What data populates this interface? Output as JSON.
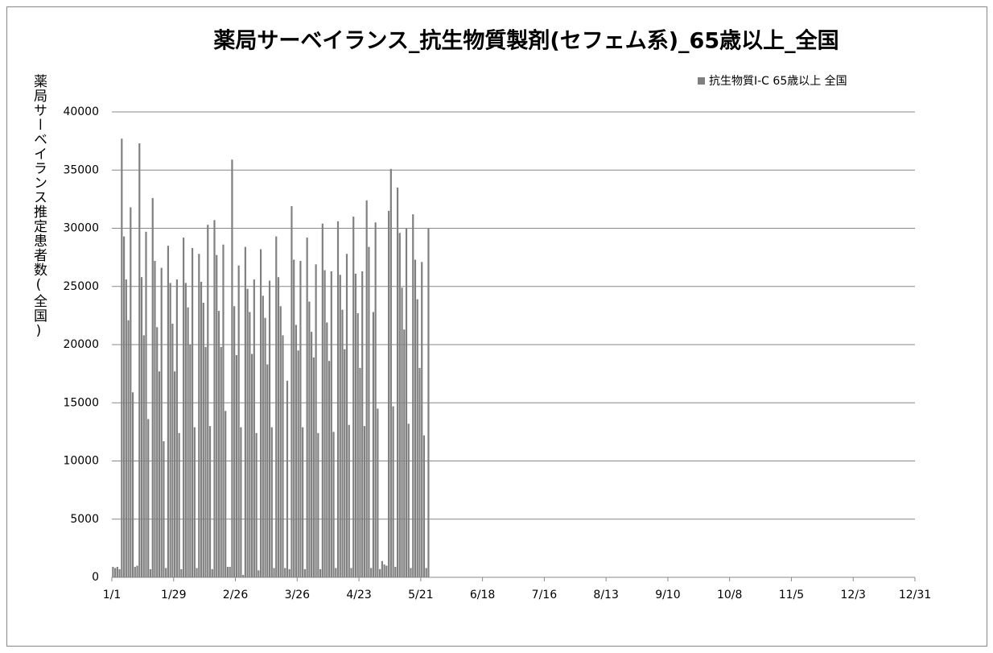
{
  "chart_data": {
    "type": "bar",
    "title": "薬局サーベイランス_抗生物質製剤(セフェム系)_65歳以上_全国",
    "y_label": "薬局サーベイランス推定患者数(全国)",
    "x": [
      "1/1",
      "1/2",
      "1/3",
      "1/4",
      "1/5",
      "1/6",
      "1/7",
      "1/8",
      "1/9",
      "1/10",
      "1/11",
      "1/12",
      "1/13",
      "1/14",
      "1/15",
      "1/16",
      "1/17",
      "1/18",
      "1/19",
      "1/20",
      "1/21",
      "1/22",
      "1/23",
      "1/24",
      "1/25",
      "1/26",
      "1/27",
      "1/28",
      "1/29",
      "1/30",
      "1/31",
      "2/1",
      "2/2",
      "2/3",
      "2/4",
      "2/5",
      "2/6",
      "2/7",
      "2/8",
      "2/9",
      "2/10",
      "2/11",
      "2/12",
      "2/13",
      "2/14",
      "2/15",
      "2/16",
      "2/17",
      "2/18",
      "2/19",
      "2/20",
      "2/21",
      "2/22",
      "2/23",
      "2/24",
      "2/25",
      "2/26",
      "2/27",
      "2/28",
      "3/1",
      "3/2",
      "3/3",
      "3/4",
      "3/5",
      "3/6",
      "3/7",
      "3/8",
      "3/9",
      "3/10",
      "3/11",
      "3/12",
      "3/13",
      "3/14",
      "3/15",
      "3/16",
      "3/17",
      "3/18",
      "3/19",
      "3/20",
      "3/21",
      "3/22",
      "3/23",
      "3/24",
      "3/25",
      "3/26",
      "3/27",
      "3/28",
      "3/29",
      "3/30",
      "3/31",
      "4/1",
      "4/2",
      "4/3",
      "4/4",
      "4/5",
      "4/6",
      "4/7",
      "4/8",
      "4/9",
      "4/10",
      "4/11",
      "4/12",
      "4/13",
      "4/14",
      "4/15",
      "4/16",
      "4/17",
      "4/18",
      "4/19",
      "4/20",
      "4/21",
      "4/22",
      "4/23",
      "4/24",
      "4/25",
      "4/26",
      "4/27",
      "4/28",
      "4/29",
      "4/30",
      "5/1",
      "5/2",
      "5/3",
      "5/4",
      "5/5",
      "5/6",
      "5/7",
      "5/8",
      "5/9",
      "5/10",
      "5/11",
      "5/12",
      "5/13",
      "5/14",
      "5/15",
      "5/16",
      "5/17",
      "5/18",
      "5/19",
      "5/20",
      "5/21",
      "5/22",
      "5/23",
      "5/24"
    ],
    "series": [
      {
        "name": "抗生物質Ⅰ-C 65歳以上 全国",
        "color": "#808080",
        "values": [
          900,
          800,
          900,
          700,
          37700,
          29300,
          25600,
          22100,
          31800,
          15900,
          900,
          1000,
          37300,
          25800,
          20800,
          29700,
          13600,
          700,
          32600,
          27200,
          21500,
          17700,
          26600,
          11700,
          800,
          28500,
          25300,
          21800,
          17700,
          25600,
          12400,
          700,
          29200,
          25300,
          23200,
          20000,
          28300,
          12900,
          800,
          27800,
          25400,
          23600,
          19800,
          30300,
          13000,
          700,
          30700,
          27700,
          22900,
          19800,
          28600,
          14300,
          900,
          900,
          35900,
          23300,
          19100,
          26800,
          12900,
          200,
          28400,
          24800,
          22800,
          19200,
          25600,
          12400,
          600,
          28200,
          24200,
          22300,
          18300,
          25500,
          12900,
          800,
          29300,
          25800,
          23300,
          20800,
          800,
          16900,
          700,
          31900,
          27300,
          21700,
          19500,
          27200,
          12900,
          700,
          29200,
          23700,
          21100,
          18900,
          26900,
          12400,
          700,
          30400,
          26400,
          21900,
          18600,
          26300,
          12500,
          800,
          30600,
          26000,
          23000,
          19600,
          27800,
          13100,
          800,
          31000,
          26100,
          22700,
          18000,
          26300,
          13000,
          32400,
          28400,
          800,
          22800,
          30500,
          14500,
          700,
          1400,
          1100,
          1000,
          31500,
          35100,
          14700,
          900,
          33500,
          29600,
          24900,
          21300,
          30000,
          13200,
          800,
          31200,
          27300,
          23900,
          18000,
          27100,
          12200,
          800,
          30000
        ]
      }
    ],
    "xlim": [
      "1/1",
      "12/31"
    ],
    "xticks": [
      "1/1",
      "1/29",
      "2/26",
      "3/26",
      "4/23",
      "5/21",
      "6/18",
      "7/16",
      "8/13",
      "9/10",
      "10/8",
      "11/5",
      "12/3",
      "12/31"
    ],
    "ylim": [
      0,
      40000
    ],
    "yticks": [
      0,
      5000,
      10000,
      15000,
      20000,
      25000,
      30000,
      35000,
      40000
    ],
    "grid": true,
    "legend": "top-right"
  }
}
